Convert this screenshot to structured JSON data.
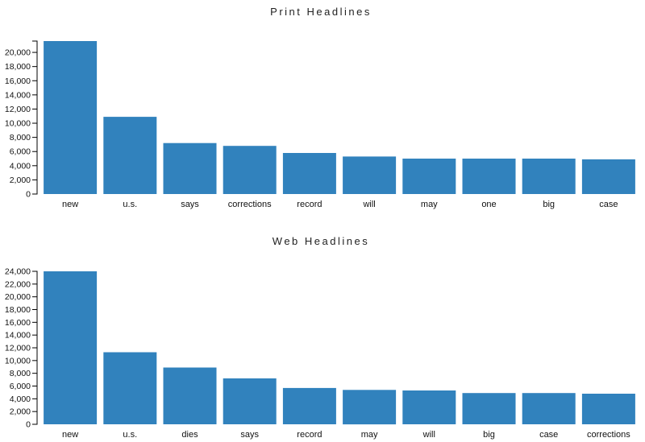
{
  "chart_data": [
    {
      "type": "bar",
      "title": "Print Headlines",
      "categories": [
        "new",
        "u.s.",
        "says",
        "corrections",
        "record",
        "will",
        "may",
        "one",
        "big",
        "case"
      ],
      "values": [
        21600,
        10900,
        7200,
        6800,
        5800,
        5300,
        5000,
        5000,
        5000,
        4900
      ],
      "yticks": [
        0,
        2000,
        4000,
        6000,
        8000,
        10000,
        12000,
        14000,
        16000,
        18000,
        20000
      ],
      "ytick_labels": [
        "0",
        "2,000",
        "4,000",
        "6,000",
        "8,000",
        "10,000",
        "12,000",
        "14,000",
        "16,000",
        "18,000",
        "20,000"
      ],
      "ylim": [
        0,
        21600
      ],
      "bar_color": "#3182bd",
      "grid": false
    },
    {
      "type": "bar",
      "title": "Web Headlines",
      "categories": [
        "new",
        "u.s.",
        "dies",
        "says",
        "record",
        "may",
        "will",
        "big",
        "case",
        "corrections"
      ],
      "values": [
        24000,
        11300,
        8900,
        7200,
        5700,
        5400,
        5300,
        4900,
        4900,
        4800
      ],
      "yticks": [
        0,
        2000,
        4000,
        6000,
        8000,
        10000,
        12000,
        14000,
        16000,
        18000,
        20000,
        22000,
        24000
      ],
      "ytick_labels": [
        "0",
        "2,000",
        "4,000",
        "6,000",
        "8,000",
        "10,000",
        "12,000",
        "14,000",
        "16,000",
        "18,000",
        "20,000",
        "22,000",
        "24,000"
      ],
      "ylim": [
        0,
        24000
      ],
      "bar_color": "#3182bd",
      "grid": false
    }
  ]
}
